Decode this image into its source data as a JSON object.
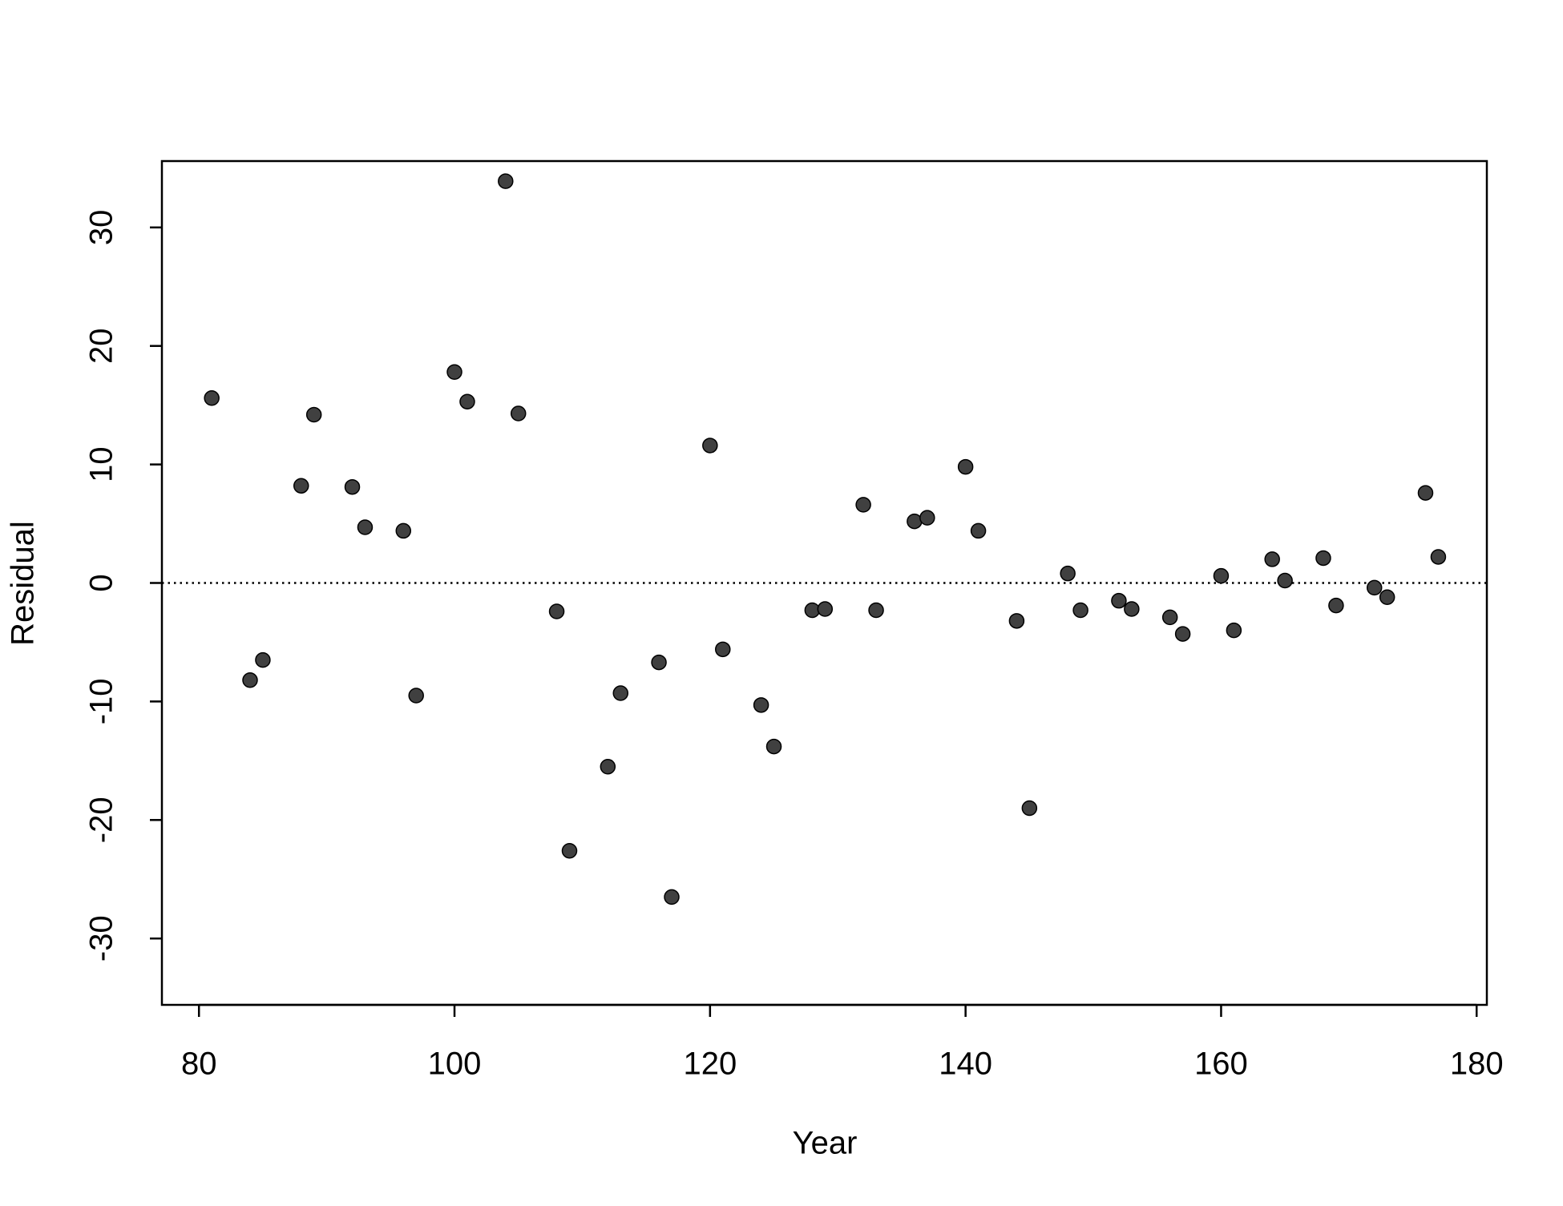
{
  "chart_data": {
    "type": "scatter",
    "x_label": "Year",
    "y_label": "Residual",
    "x": [
      81,
      84,
      85,
      88,
      89,
      92,
      93,
      96,
      97,
      100,
      101,
      104,
      105,
      108,
      109,
      112,
      113,
      116,
      117,
      120,
      121,
      124,
      125,
      128,
      129,
      132,
      133,
      136,
      137,
      140,
      141,
      144,
      145,
      148,
      149,
      152,
      153,
      156,
      157,
      160,
      161,
      164,
      165,
      168,
      169,
      172,
      173,
      176,
      177
    ],
    "series": [
      {
        "color": "#404040",
        "values": [
          15.6,
          -8.2,
          -6.5,
          8.2,
          14.2,
          8.1,
          4.7,
          4.4,
          -9.5,
          17.8,
          15.3,
          33.9,
          14.3,
          -2.4,
          -22.6,
          -15.5,
          -9.3,
          -6.7,
          -26.5,
          11.6,
          -5.6,
          -10.3,
          -13.8,
          -2.3,
          -2.2,
          6.6,
          -2.3,
          5.2,
          5.5,
          9.8,
          4.4,
          -3.2,
          -19.0,
          0.8,
          -2.3,
          -1.5,
          -2.2,
          -2.9,
          -4.3,
          0.6,
          -4.0,
          2.0,
          0.2,
          2.1,
          -1.9,
          -0.4,
          -1.2,
          7.6,
          2.2
        ]
      }
    ],
    "reference_line": 0,
    "xlim": [
      77.1,
      180.8
    ],
    "ylim": [
      -35.6,
      35.6
    ],
    "xticks": [
      80,
      100,
      120,
      140,
      160,
      180
    ],
    "yticks": [
      -30,
      -20,
      -10,
      0,
      10,
      20,
      30
    ],
    "grid": false
  }
}
